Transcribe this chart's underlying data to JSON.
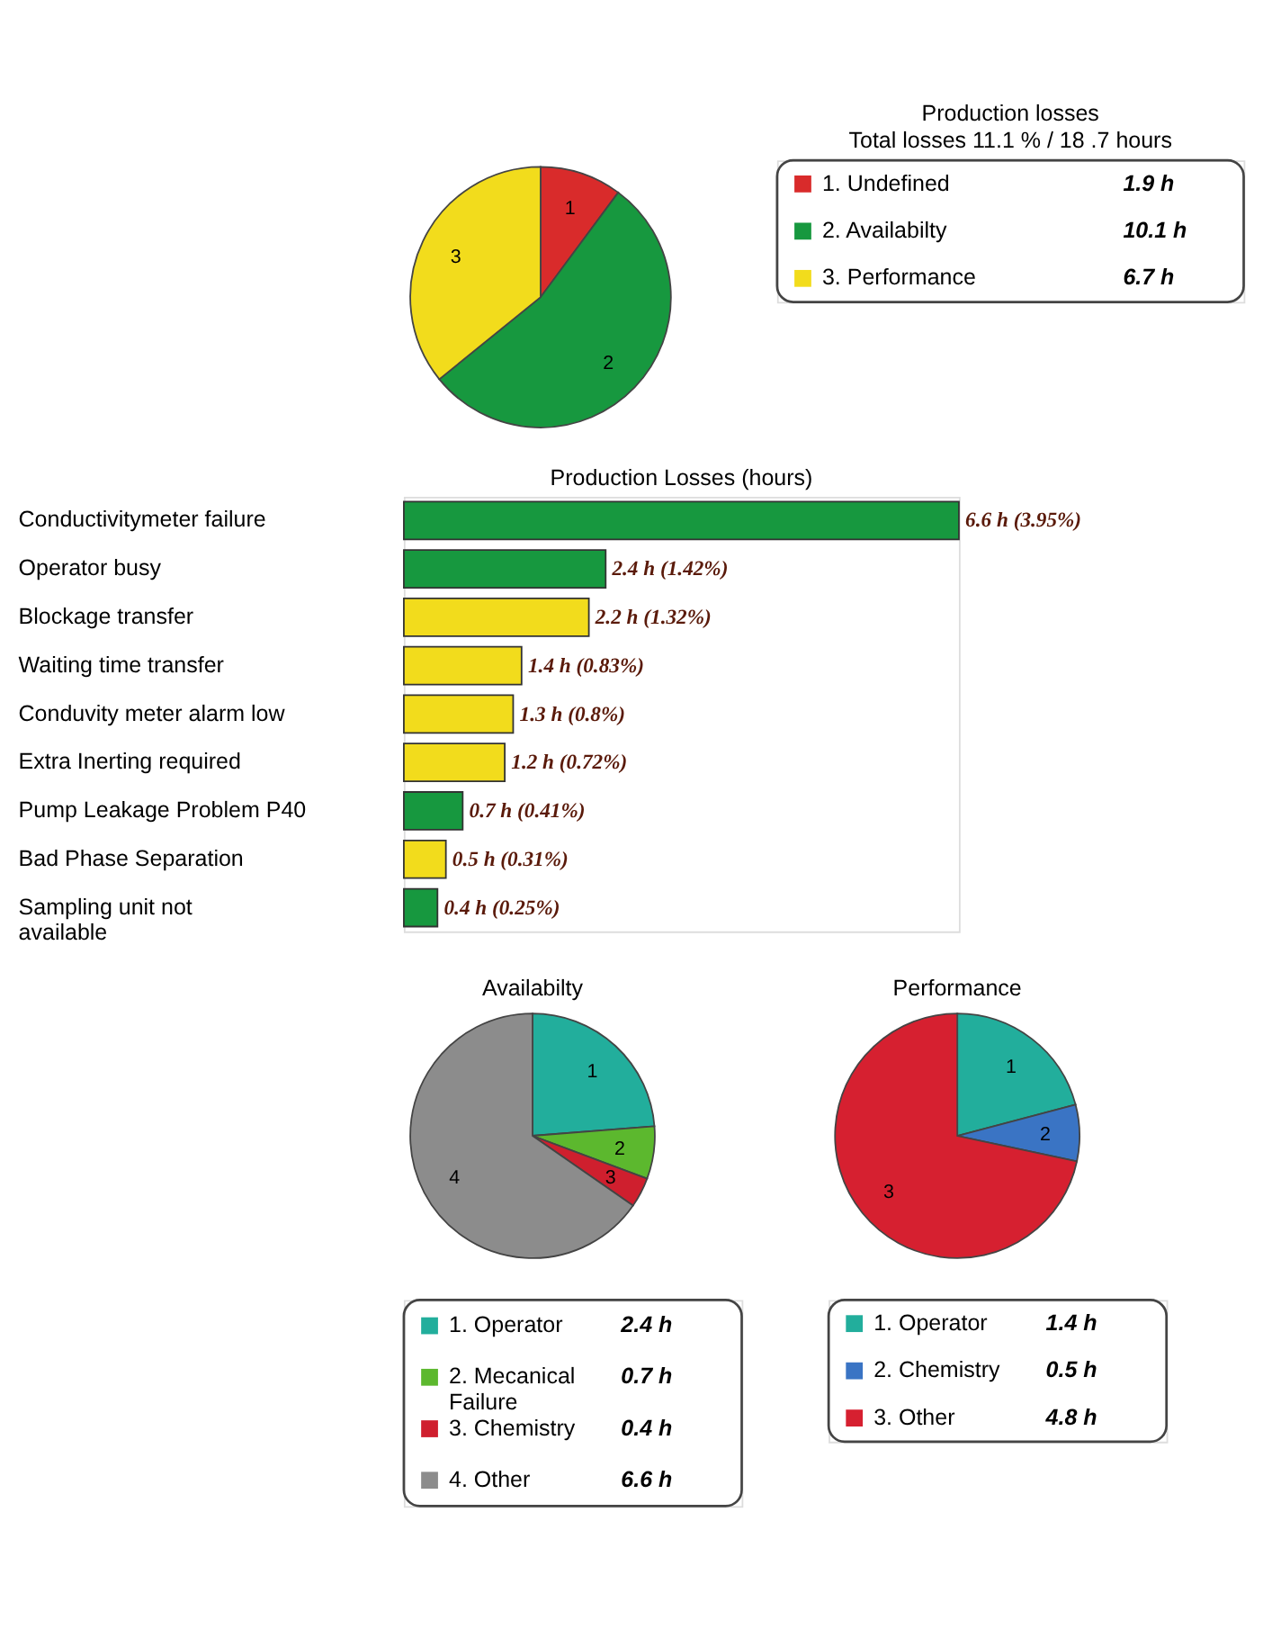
{
  "chart_data": [
    {
      "type": "pie",
      "title": "Production losses",
      "subtitle": "Total losses 11.1 % / 18 .7 hours",
      "categories": [
        "1. Undefined",
        "2. Availabilty",
        "3. Performance"
      ],
      "values": [
        1.9,
        10.1,
        6.7
      ],
      "colors": [
        "#d92b2b",
        "#17983f",
        "#f2dc1c"
      ],
      "value_labels": [
        "1.9 h",
        "10.1 h",
        "6.7 h"
      ],
      "annotations": [
        "1",
        "2",
        "3"
      ],
      "legend": "right"
    },
    {
      "type": "bar",
      "orientation": "horizontal",
      "title": "Production Losses (hours)",
      "categories": [
        "Conductivitymeter failure",
        "Operator busy",
        "Blockage transfer",
        "Waiting time transfer",
        "Conduvity meter alarm low",
        "Extra Inerting required",
        "Pump Leakage Problem P40",
        "Bad Phase Separation",
        "Sampling unit not available"
      ],
      "values": [
        6.6,
        2.4,
        2.2,
        1.4,
        1.3,
        1.2,
        0.7,
        0.5,
        0.4
      ],
      "colors": [
        "#17983f",
        "#17983f",
        "#f2dc1c",
        "#f2dc1c",
        "#f2dc1c",
        "#f2dc1c",
        "#17983f",
        "#f2dc1c",
        "#17983f"
      ],
      "value_labels": [
        "6.6 h (3.95%)",
        "2.4 h (1.42%)",
        "2.2 h (1.32%)",
        "1.4 h (0.83%)",
        "1.3 h (0.8%)",
        "1.2 h (0.72%)",
        "0.7 h (0.41%)",
        "0.5 h (0.31%)",
        "0.4 h (0.25%)"
      ]
    },
    {
      "type": "pie",
      "title": "Availabilty",
      "categories": [
        "1. Operator",
        "2. Mecanical Failure",
        "3. Chemistry",
        "4. Other"
      ],
      "values": [
        2.4,
        0.7,
        0.4,
        6.6
      ],
      "colors": [
        "#22ae9c",
        "#5cb82e",
        "#cf1f2e",
        "#8c8c8c"
      ],
      "value_labels": [
        "2.4 h",
        "0.7 h",
        "0.4 h",
        "6.6 h"
      ],
      "annotations": [
        "1",
        "2",
        "3",
        "4"
      ],
      "legend": "bottom"
    },
    {
      "type": "pie",
      "title": "Performance",
      "categories": [
        "1. Operator",
        "2. Chemistry",
        "3. Other"
      ],
      "values": [
        1.4,
        0.5,
        4.8
      ],
      "colors": [
        "#22ae9c",
        "#3a74c4",
        "#d62030"
      ],
      "value_labels": [
        "1.4 h",
        "0.5 h",
        "4.8 h"
      ],
      "annotations": [
        "1",
        "2",
        "3"
      ],
      "legend": "bottom"
    }
  ]
}
